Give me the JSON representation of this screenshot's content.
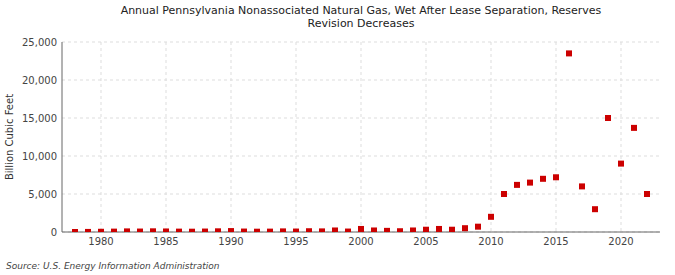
{
  "chart_data": {
    "type": "scatter",
    "title": "Annual Pennsylvania Nonassociated Natural Gas, Wet After Lease Separation, Reserves\nRevision Decreases",
    "ylabel": "Billion Cubic Feet",
    "annotation": "Source: U.S. Energy Information Administration",
    "x": [
      1978,
      1979,
      1980,
      1981,
      1982,
      1983,
      1984,
      1985,
      1986,
      1987,
      1988,
      1989,
      1990,
      1991,
      1992,
      1993,
      1994,
      1995,
      1996,
      1997,
      1998,
      1999,
      2000,
      2001,
      2002,
      2003,
      2004,
      2005,
      2006,
      2007,
      2008,
      2009,
      2010,
      2011,
      2012,
      2013,
      2014,
      2015,
      2016,
      2017,
      2018,
      2019,
      2020,
      2021,
      2022
    ],
    "values": [
      0,
      10,
      30,
      50,
      80,
      60,
      90,
      70,
      50,
      40,
      60,
      90,
      120,
      60,
      40,
      50,
      80,
      60,
      100,
      80,
      200,
      60,
      400,
      200,
      150,
      100,
      200,
      300,
      400,
      300,
      500,
      700,
      2000,
      5000,
      6200,
      6500,
      7000,
      7200,
      23500,
      6000,
      3000,
      15000,
      9000,
      13700,
      5000
    ],
    "color": "#cc0000",
    "marker": "square",
    "xlim": [
      1977,
      2023
    ],
    "ylim": [
      0,
      25000
    ],
    "xticks": [
      1980,
      1985,
      1990,
      1995,
      2000,
      2005,
      2010,
      2015,
      2020
    ],
    "yticks": [
      0,
      {
        "value": 5000,
        "label": "5,000"
      },
      {
        "value": 10000,
        "label": "10,000"
      },
      {
        "value": 15000,
        "label": "15,000"
      },
      {
        "value": 20000,
        "label": "20,000"
      },
      {
        "value": 25000,
        "label": "25,000"
      }
    ],
    "grid": true
  }
}
